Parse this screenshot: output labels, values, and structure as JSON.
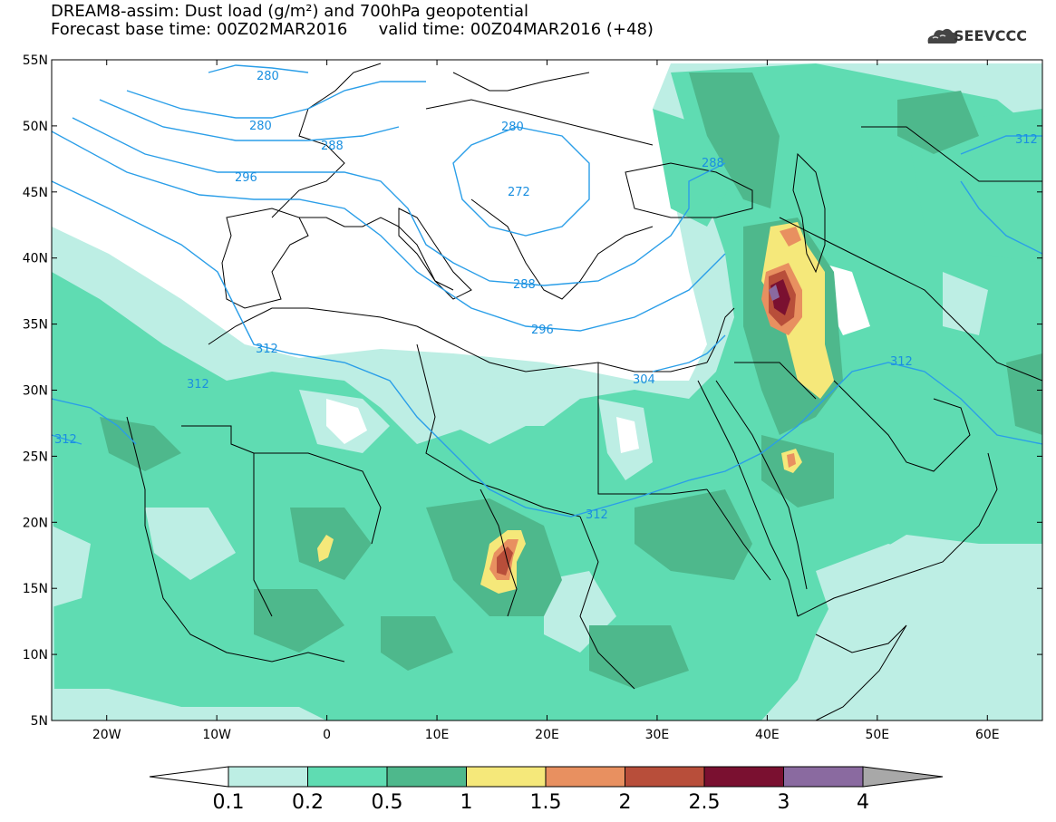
{
  "title": {
    "line1": "DREAM8-assim: Dust load (g/m²) and 700hPa geopotential",
    "line2": "Forecast base time: 00Z02MAR2016      valid time: 00Z04MAR2016 (+48)"
  },
  "logo": {
    "text": "SEEVCCC",
    "icon": "cloud-icon"
  },
  "map": {
    "lon_range": [
      -25,
      65
    ],
    "lat_range": [
      5,
      55
    ],
    "lat_labels": [
      "55N",
      "50N",
      "45N",
      "40N",
      "35N",
      "30N",
      "25N",
      "20N",
      "15N",
      "10N",
      "5N"
    ],
    "lon_labels": [
      "20W",
      "10W",
      "0",
      "10E",
      "20E",
      "30E",
      "40E",
      "50E",
      "60E"
    ],
    "contour_labels": [
      "272",
      "280",
      "288",
      "296",
      "312",
      "312",
      "312",
      "280",
      "288",
      "296",
      "288",
      "304",
      "312",
      "312"
    ]
  },
  "colorbar": {
    "levels": [
      "0.1",
      "0.2",
      "0.5",
      "1",
      "1.5",
      "2",
      "2.5",
      "3",
      "4"
    ],
    "colors": [
      "#ffffff",
      "#bdeee4",
      "#5fdcb2",
      "#4eb88c",
      "#f5e87a",
      "#e89060",
      "#b84e3a",
      "#7a1030",
      "#8a6aa0",
      "#a8a8a8"
    ]
  }
}
